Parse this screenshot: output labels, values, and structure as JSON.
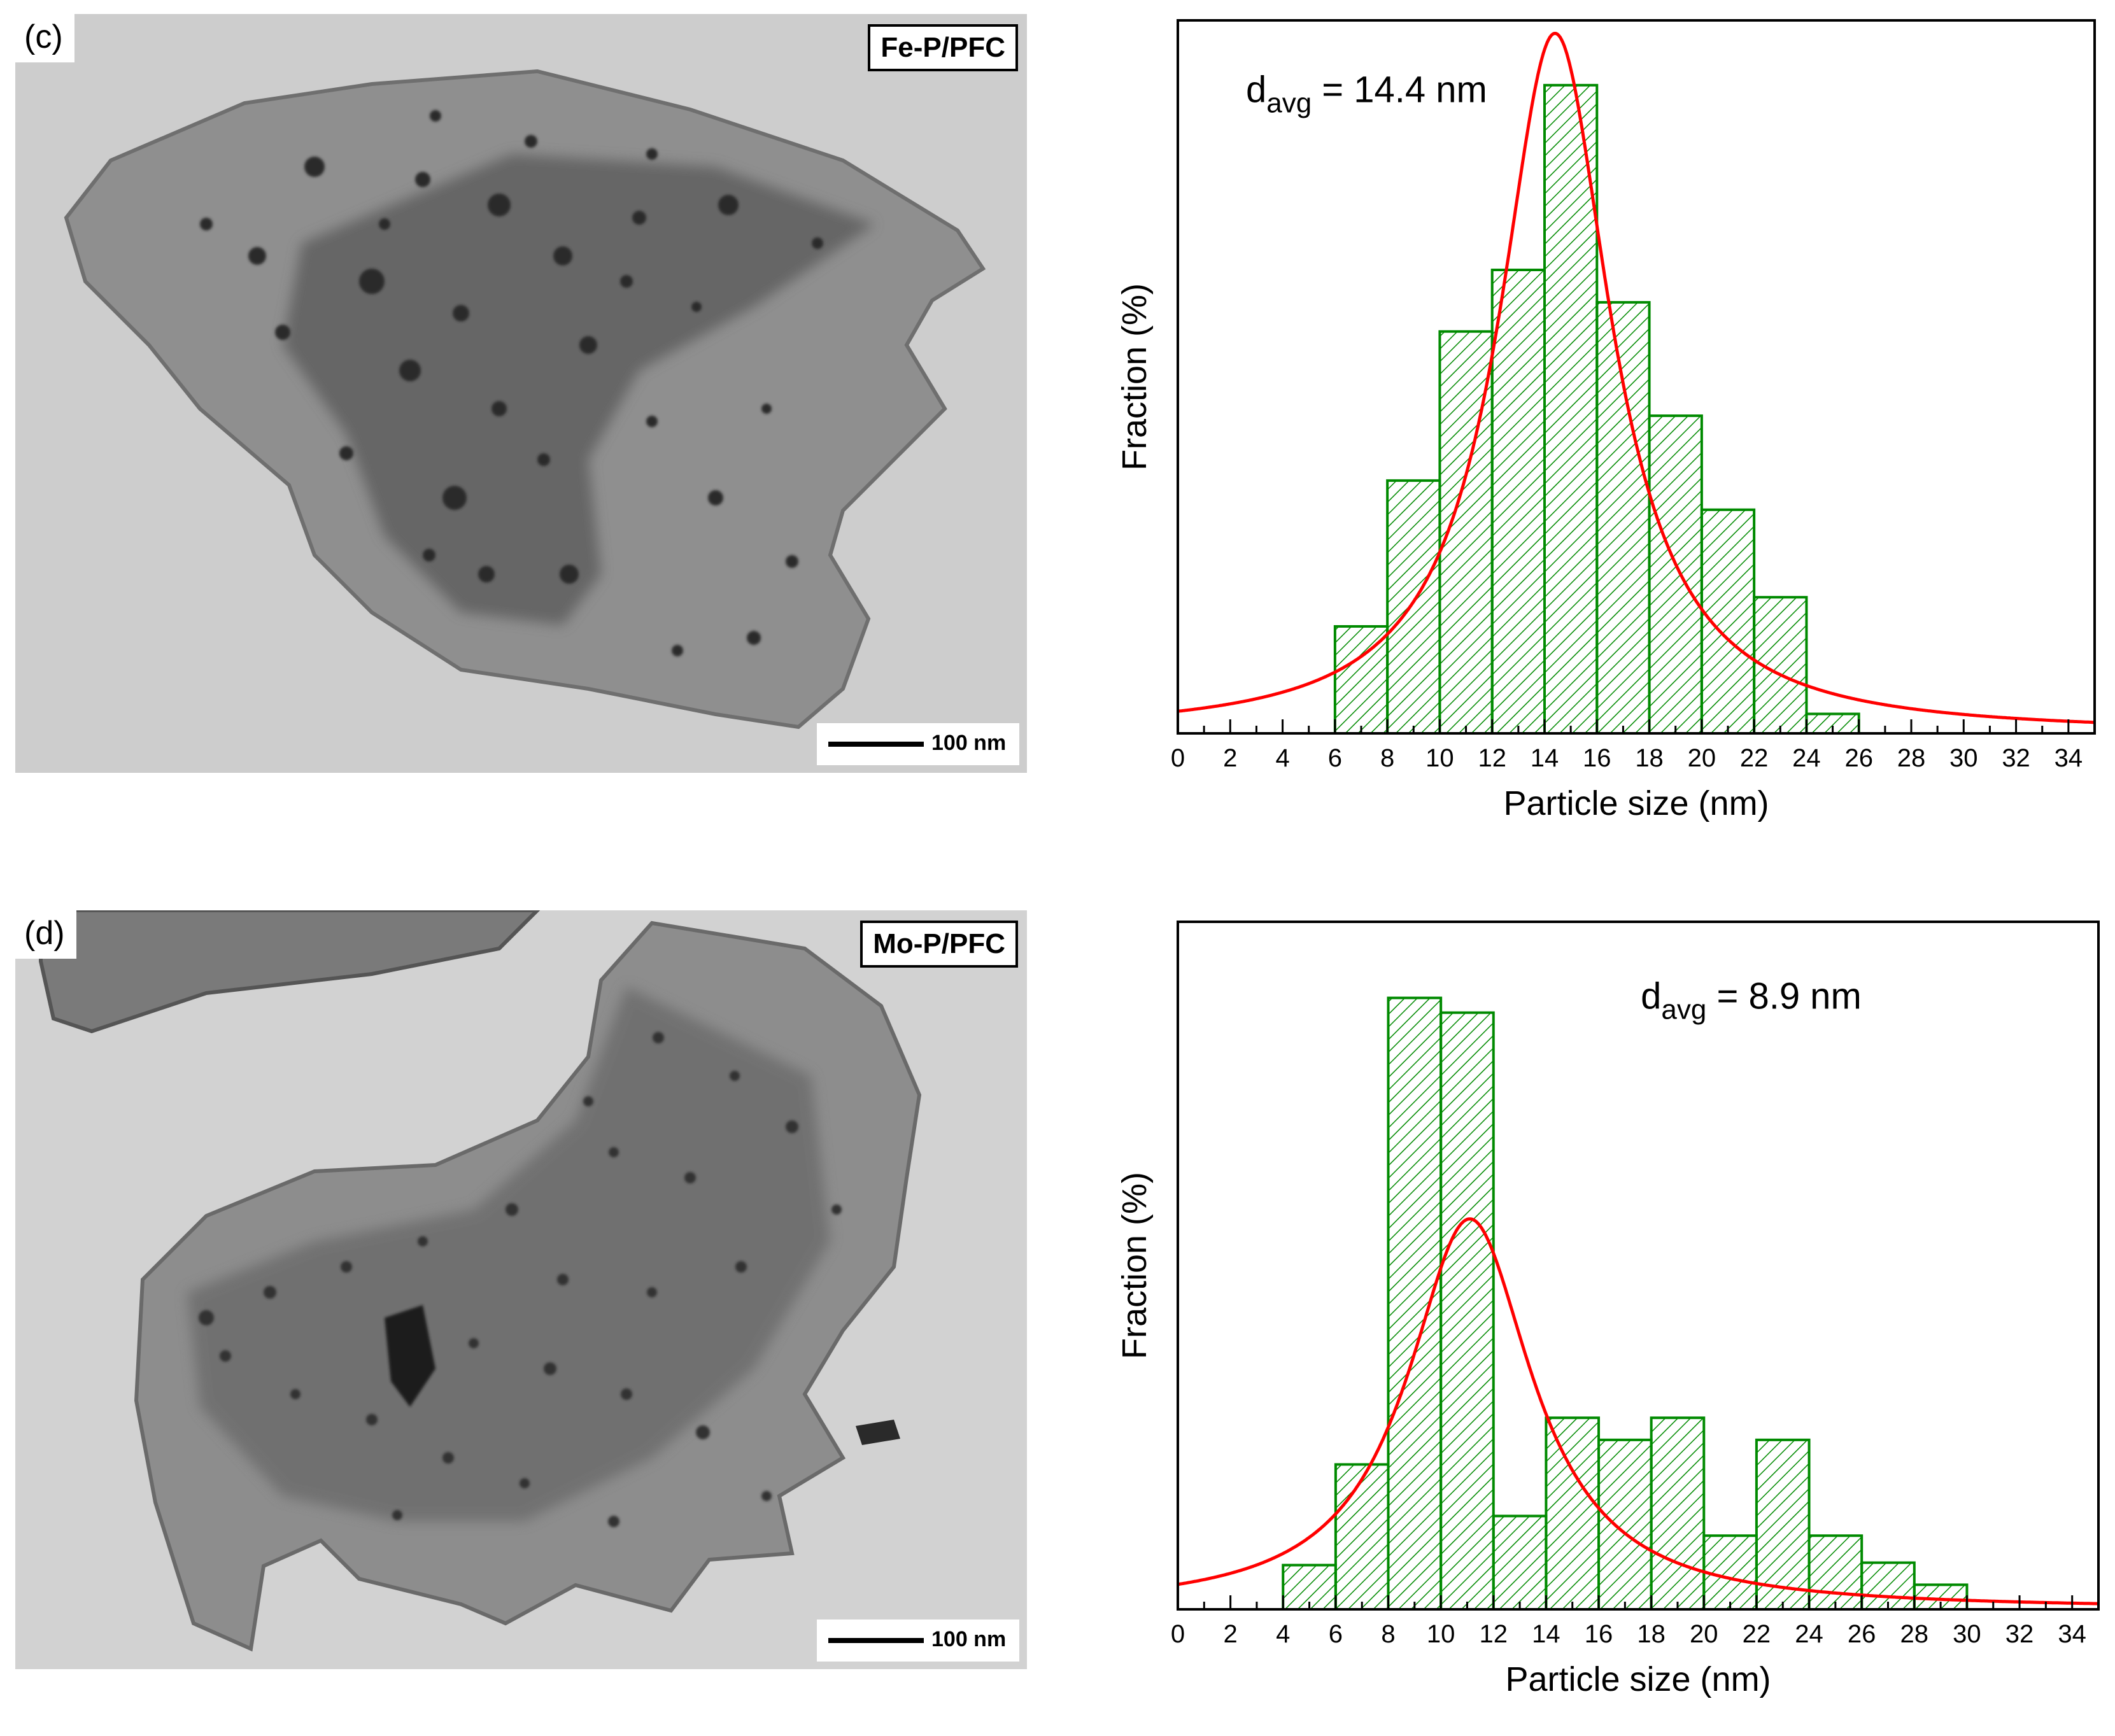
{
  "panels": [
    {
      "id": "c",
      "tem": {
        "panel_label": "(c)",
        "sample_label": "Fe-P/PFC",
        "scale_label": "100 nm"
      }
    },
    {
      "id": "d",
      "tem": {
        "panel_label": "(d)",
        "sample_label": "Mo-P/PFC",
        "scale_label": "100 nm"
      }
    }
  ],
  "chart_data": [
    {
      "type": "bar",
      "panel": "c",
      "title": "",
      "annotation": {
        "main": "d",
        "sub": "avg",
        "rest": " = 14.4 nm"
      },
      "xlabel": "Particle size (nm)",
      "ylabel": "Fraction (%)",
      "xlim": [
        0,
        35
      ],
      "ylim": [
        0,
        22
      ],
      "xticks": [
        0,
        2,
        4,
        6,
        8,
        10,
        12,
        14,
        16,
        18,
        20,
        22,
        24,
        26,
        28,
        30,
        32,
        34
      ],
      "bin_edges": [
        6,
        8,
        10,
        12,
        14,
        16,
        18,
        20,
        22,
        24,
        26
      ],
      "values": [
        3.3,
        7.8,
        12.4,
        14.3,
        20.0,
        13.3,
        9.8,
        6.9,
        4.2,
        0.6
      ],
      "fit": {
        "type": "lorentzian",
        "center": 14.4,
        "peak": 21.6,
        "gamma": 2.6,
        "baseline": 0.0
      },
      "colors": {
        "bars": "#008a00",
        "fit": "#ff0000",
        "axis": "#000000"
      }
    },
    {
      "type": "bar",
      "panel": "d",
      "title": "",
      "annotation": {
        "main": "d",
        "sub": "avg",
        "rest": " = 8.9 nm"
      },
      "xlabel": "Particle size (nm)",
      "ylabel": "Fraction (%)",
      "xlim": [
        0,
        35
      ],
      "ylim": [
        0,
        28
      ],
      "xticks": [
        0,
        2,
        4,
        6,
        8,
        10,
        12,
        14,
        16,
        18,
        20,
        22,
        24,
        26,
        28,
        30,
        32,
        34
      ],
      "bin_edges": [
        4,
        6,
        8,
        10,
        12,
        14,
        16,
        18,
        20,
        22,
        24,
        26,
        28,
        30
      ],
      "values": [
        1.8,
        5.9,
        24.9,
        24.3,
        3.8,
        7.8,
        6.9,
        7.8,
        3.0,
        6.9,
        3.0,
        1.9,
        1.0
      ],
      "fit": {
        "type": "lorentzian",
        "center": 11.1,
        "peak": 15.9,
        "gamma": 2.9,
        "baseline": 0.0
      },
      "colors": {
        "bars": "#008a00",
        "fit": "#ff0000",
        "axis": "#000000"
      }
    }
  ]
}
